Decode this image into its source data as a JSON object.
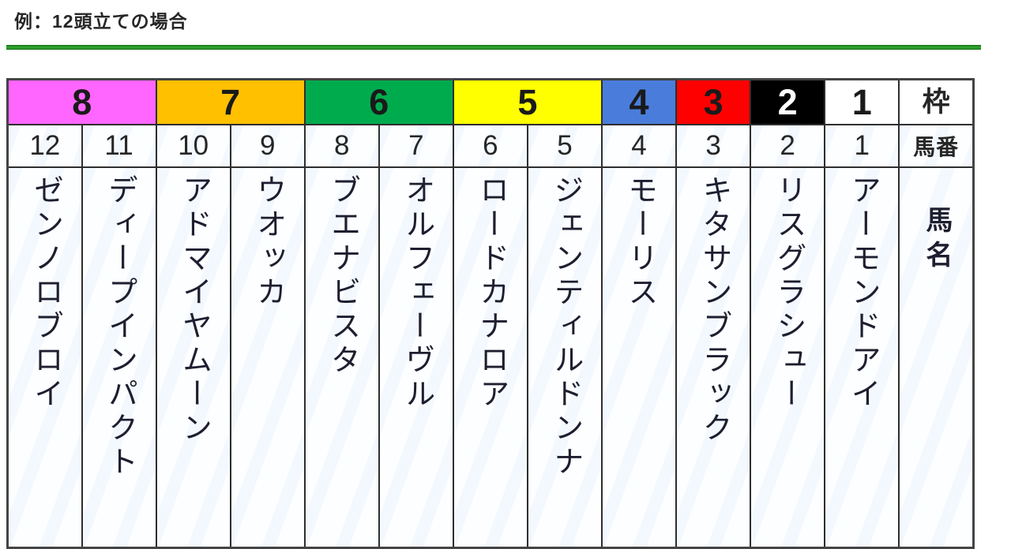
{
  "title": "例：12頭立ての場合",
  "colors": {
    "divider_green": "#2da02d",
    "table_border": "#2e2e2e",
    "frame_8_pink": "#ff66ff",
    "frame_7_orange": "#ffc000",
    "frame_6_green": "#00ab4e",
    "frame_5_yellow": "#ffff00",
    "frame_4_blue": "#4a7ddb",
    "frame_3_red": "#ff0000",
    "frame_2_black": "#000000",
    "frame_1_white": "#ffffff"
  },
  "table": {
    "frame_header_label": "枠",
    "number_header_label": "馬番",
    "name_header_label": "馬名",
    "frames": [
      {
        "label": "8",
        "bg": "#ff66ff",
        "fg": "#1a1a1a",
        "span": 2
      },
      {
        "label": "7",
        "bg": "#ffc000",
        "fg": "#1a1a1a",
        "span": 2
      },
      {
        "label": "6",
        "bg": "#00ab4e",
        "fg": "#1a1a1a",
        "span": 2
      },
      {
        "label": "5",
        "bg": "#ffff00",
        "fg": "#1a1a1a",
        "span": 2
      },
      {
        "label": "4",
        "bg": "#4a7ddb",
        "fg": "#1a1a1a",
        "span": 1
      },
      {
        "label": "3",
        "bg": "#ff0000",
        "fg": "#1a1a1a",
        "span": 1
      },
      {
        "label": "2",
        "bg": "#000000",
        "fg": "#ffffff",
        "span": 1
      },
      {
        "label": "1",
        "bg": "#ffffff",
        "fg": "#1a1a1a",
        "span": 1
      }
    ],
    "horses": [
      {
        "number": "12",
        "name": "ゼンノロブロイ"
      },
      {
        "number": "11",
        "name": "ディープインパクト"
      },
      {
        "number": "10",
        "name": "アドマイヤムーン"
      },
      {
        "number": "9",
        "name": "ウオッカ"
      },
      {
        "number": "8",
        "name": "ブエナビスタ"
      },
      {
        "number": "7",
        "name": "オルフェーヴル"
      },
      {
        "number": "6",
        "name": "ロードカナロア"
      },
      {
        "number": "5",
        "name": "ジェンティルドンナ"
      },
      {
        "number": "4",
        "name": "モーリス"
      },
      {
        "number": "3",
        "name": "キタサンブラック"
      },
      {
        "number": "2",
        "name": "リスグラシュー"
      },
      {
        "number": "1",
        "name": "アーモンドアイ"
      }
    ]
  }
}
